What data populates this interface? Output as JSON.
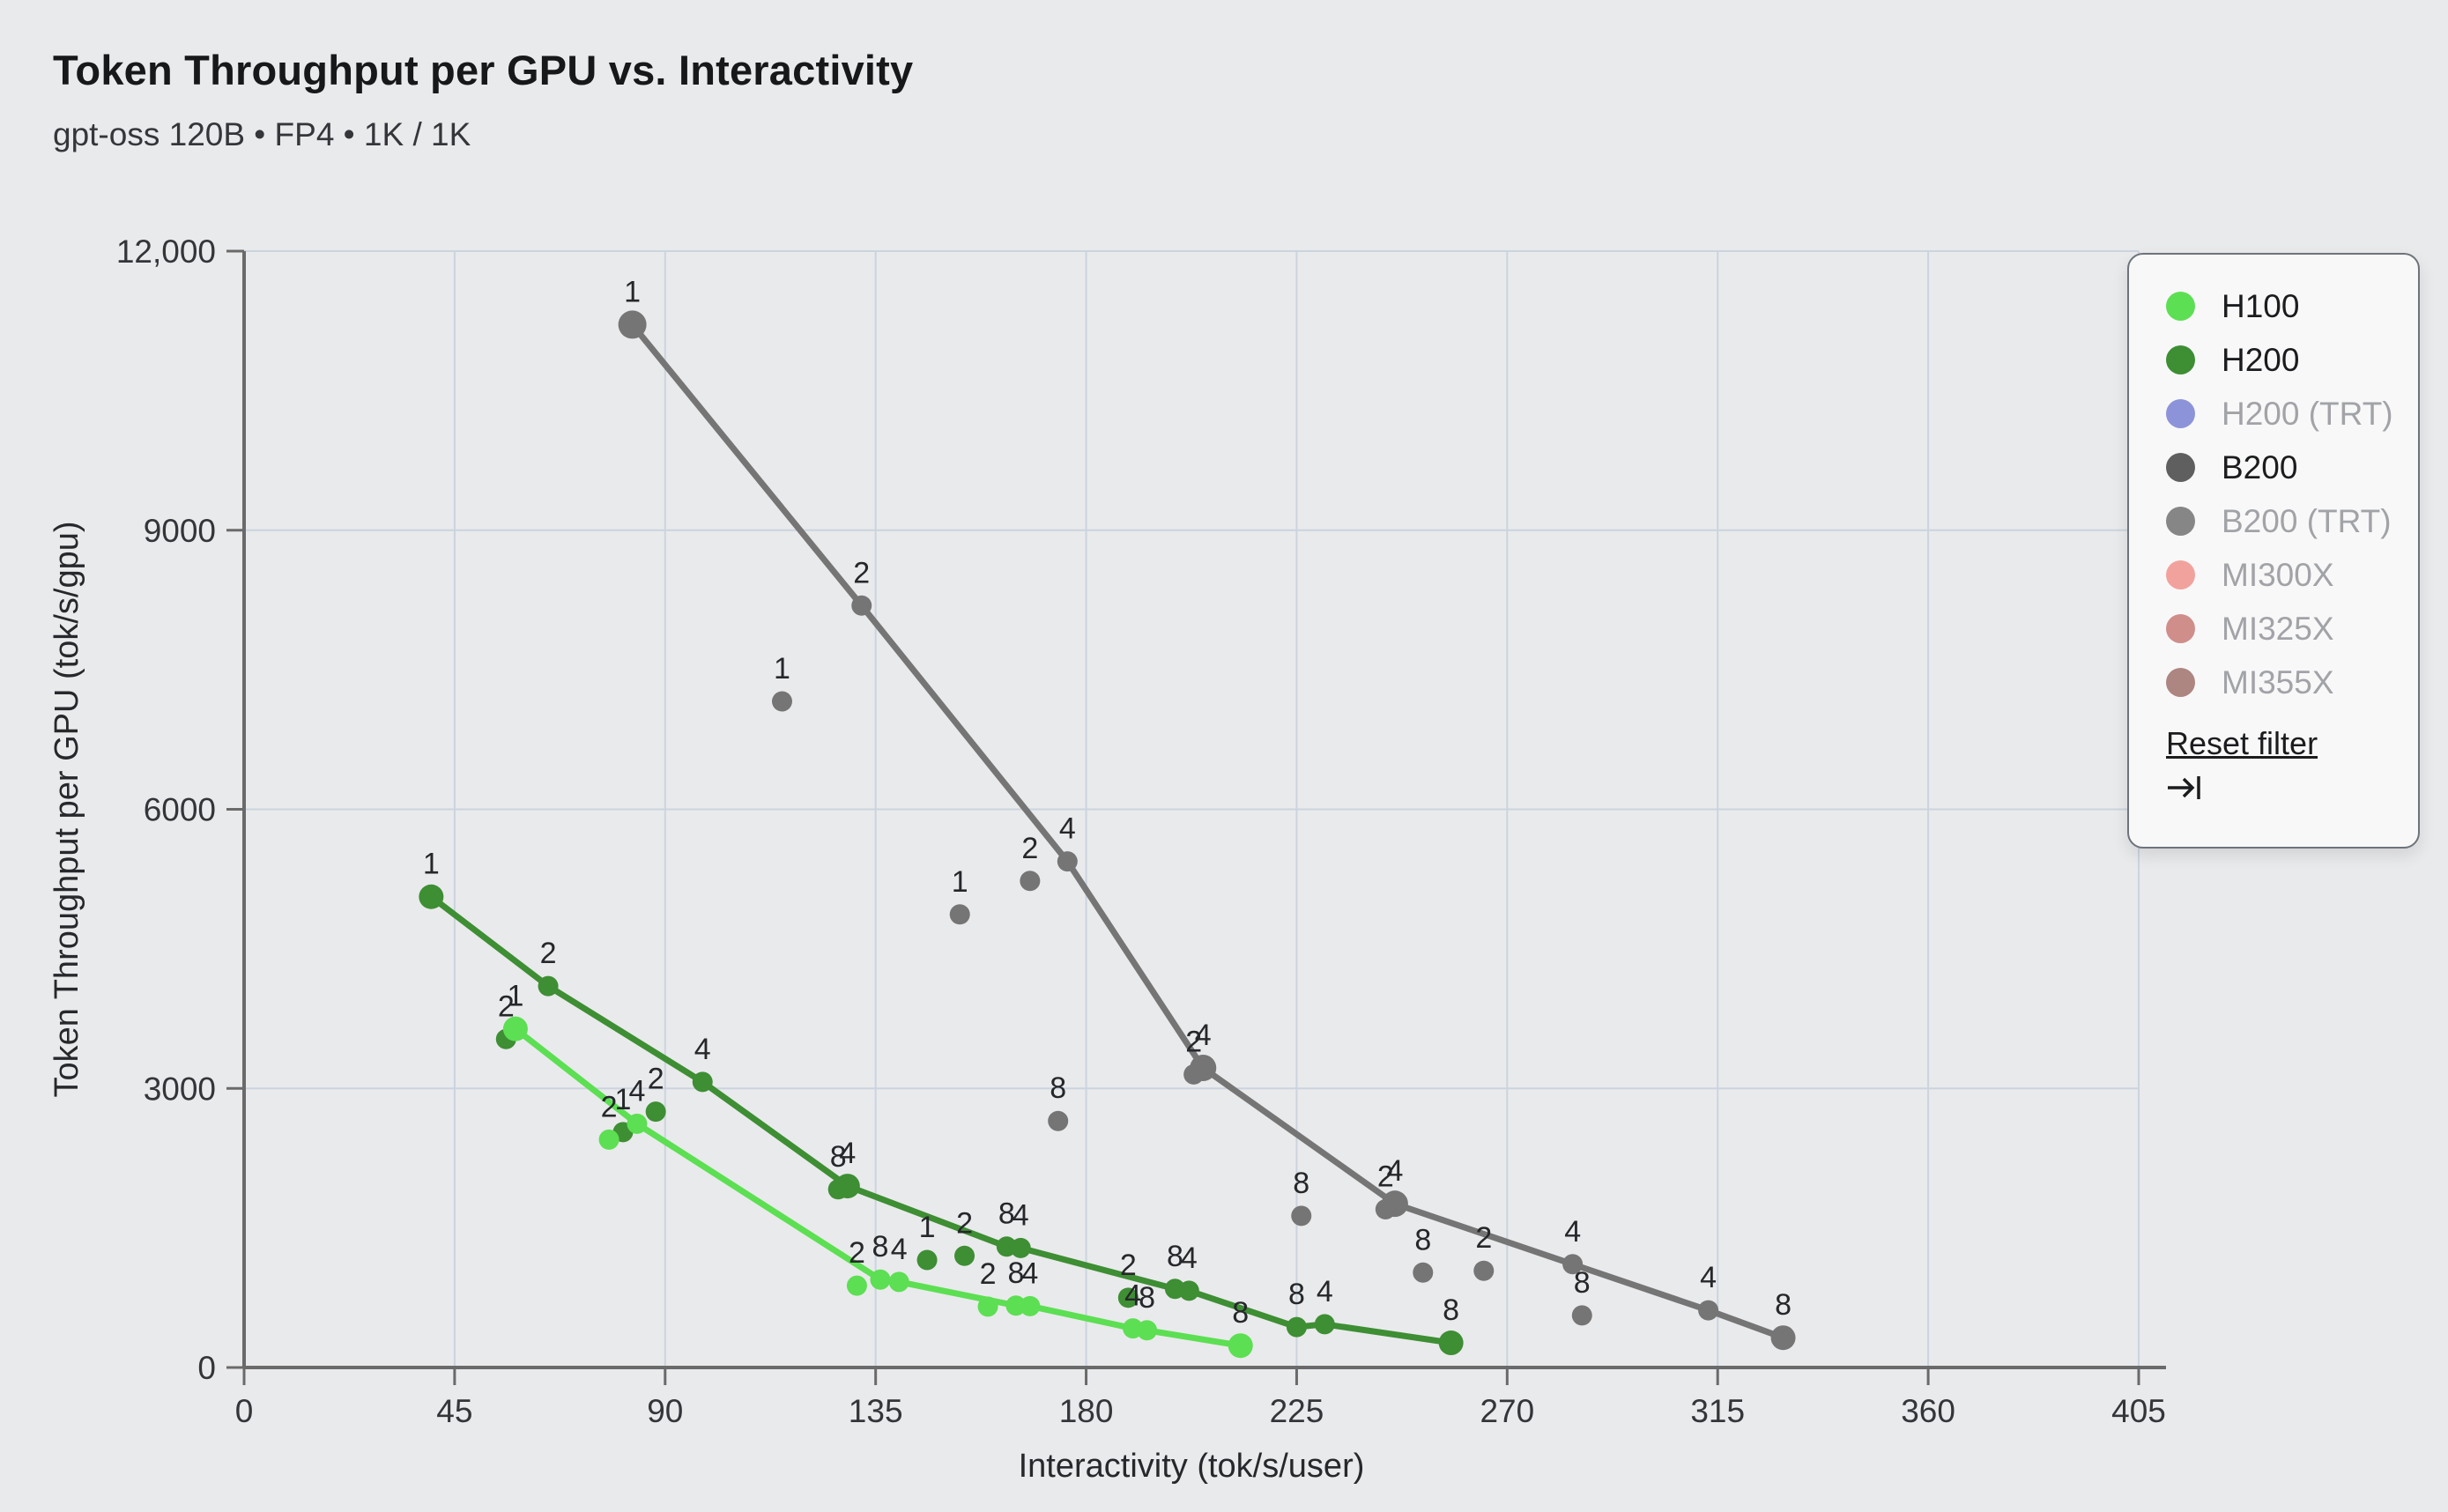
{
  "title": "Token Throughput per GPU vs. Interactivity",
  "subtitle": "gpt-oss 120B • FP4 • 1K / 1K",
  "colors": {
    "page_background": "#e9eaec",
    "grid": "#cbd4de",
    "axis": "#6a6a6a",
    "point_label": "#26272a",
    "tick_label": "#333539",
    "legend_active_text": "#1b1c1e",
    "legend_inactive_text": "#a2a3a7"
  },
  "legend": {
    "reset_label": "Reset filter",
    "reset_icon": "arrow-to-bar-icon",
    "items": [
      {
        "label": "H100",
        "color": "#5cdf52",
        "active": true
      },
      {
        "label": "H200",
        "color": "#3e8e34",
        "active": true
      },
      {
        "label": "H200 (TRT)",
        "color": "#8d93d9",
        "active": false
      },
      {
        "label": "B200",
        "color": "#5f5f5f",
        "active": true
      },
      {
        "label": "B200 (TRT)",
        "color": "#868686",
        "active": false
      },
      {
        "label": "MI300X",
        "color": "#f2a29d",
        "active": false
      },
      {
        "label": "MI325X",
        "color": "#cf8e8a",
        "active": false
      },
      {
        "label": "MI355X",
        "color": "#ad8581",
        "active": false
      }
    ]
  },
  "chart_data": {
    "type": "scatter",
    "title": "Token Throughput per GPU vs. Interactivity",
    "xlabel": "Interactivity (tok/s/user)",
    "ylabel": "Token Throughput per GPU (tok/s/gpu)",
    "xlim": [
      0,
      405
    ],
    "ylim": [
      0,
      12000
    ],
    "xticks": [
      0,
      45,
      90,
      135,
      180,
      225,
      270,
      315,
      360,
      405
    ],
    "yticks": [
      {
        "value": 0,
        "label": "0"
      },
      {
        "value": 3000,
        "label": "3000"
      },
      {
        "value": 6000,
        "label": "6000"
      },
      {
        "value": 9000,
        "label": "9000"
      },
      {
        "value": 12000,
        "label": "12,000"
      }
    ],
    "grid": true,
    "legend_position": "top-right",
    "point_label_meaning": "tensor-parallel size (1/2/4/8) shown above each point",
    "series": [
      {
        "name": "B200",
        "color": "#757575",
        "line": [
          [
            83,
            11210,
            "1",
            16
          ],
          [
            132,
            8190,
            "2"
          ],
          [
            176,
            5440,
            "4"
          ],
          [
            205,
            3220,
            "4",
            15
          ],
          [
            246,
            1760,
            "4",
            15
          ],
          [
            284,
            1110,
            "4"
          ],
          [
            313,
            615,
            "4"
          ],
          [
            329,
            320,
            "8",
            14
          ]
        ],
        "scatter": [
          [
            115,
            7160,
            "1"
          ],
          [
            153,
            4870,
            "1"
          ],
          [
            168,
            5230,
            "2"
          ],
          [
            174,
            2650,
            "8"
          ],
          [
            203,
            3150,
            "2"
          ],
          [
            226,
            1630,
            "8"
          ],
          [
            244,
            1700,
            "2"
          ],
          [
            252,
            1020,
            "8"
          ],
          [
            265,
            1040,
            "2"
          ],
          [
            286,
            560,
            "8"
          ]
        ]
      },
      {
        "name": "H200",
        "color": "#3e8e34",
        "line": [
          [
            40,
            5060,
            "1",
            14
          ],
          [
            65,
            4100,
            "2"
          ],
          [
            98,
            3070,
            "4"
          ],
          [
            129,
            1950,
            "4",
            14
          ],
          [
            163,
            1300,
            "8"
          ],
          [
            166,
            1285,
            "4"
          ],
          [
            199,
            845,
            "8"
          ],
          [
            202,
            825,
            "4"
          ],
          [
            225,
            435,
            "8"
          ],
          [
            231,
            465,
            "4"
          ],
          [
            258,
            265,
            "8",
            14
          ]
        ],
        "scatter": [
          [
            56,
            3530,
            "2"
          ],
          [
            81,
            2530,
            "1"
          ],
          [
            88,
            2750,
            "2"
          ],
          [
            127,
            1915,
            "8"
          ],
          [
            146,
            1155,
            "1"
          ],
          [
            154,
            1200,
            "2"
          ],
          [
            189,
            750,
            "2"
          ]
        ]
      },
      {
        "name": "H100",
        "color": "#5cdf52",
        "line": [
          [
            58,
            3640,
            "1",
            14
          ],
          [
            84,
            2620,
            "4"
          ],
          [
            136,
            945,
            "8"
          ],
          [
            140,
            920,
            "4"
          ],
          [
            165,
            665,
            "8"
          ],
          [
            168,
            660,
            "4"
          ],
          [
            190,
            420,
            "4"
          ],
          [
            193,
            400,
            "8"
          ],
          [
            213,
            235,
            "8",
            14
          ]
        ],
        "scatter": [
          [
            78,
            2450,
            "2"
          ],
          [
            131,
            880,
            "2"
          ],
          [
            159,
            655,
            "2"
          ]
        ]
      }
    ]
  }
}
